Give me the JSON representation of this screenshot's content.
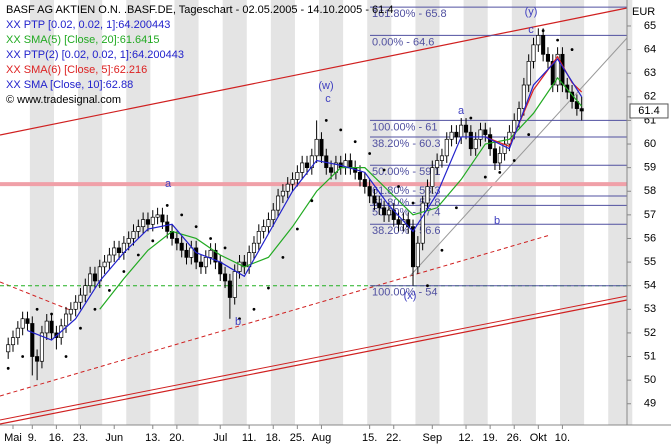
{
  "chart_data": {
    "type": "candlestick",
    "title": "BASF AG AKTIEN O.N. .BASF.DE, Tageschart - 02.05.2005 - 14.10.2005 - 61.4",
    "copyright": "© www.tradesignal.com",
    "currency": "EUR",
    "last_price": 61.4,
    "xlim": [
      -1.7,
      128.4
    ],
    "ylim": [
      48.1,
      66.1
    ],
    "yticks": [
      49,
      50,
      51,
      52,
      53,
      54,
      55,
      56,
      57,
      58,
      59,
      60,
      61,
      62,
      63,
      64,
      65
    ],
    "xticks": [
      {
        "value": 1,
        "label": "Mai"
      },
      {
        "value": 5,
        "label": "9."
      },
      {
        "value": 10,
        "label": "16."
      },
      {
        "value": 15,
        "label": "23."
      },
      {
        "value": 22,
        "label": "Jun"
      },
      {
        "value": 30,
        "label": "13."
      },
      {
        "value": 35,
        "label": "20."
      },
      {
        "value": 44,
        "label": "Jul"
      },
      {
        "value": 50,
        "label": "11."
      },
      {
        "value": 55,
        "label": "18."
      },
      {
        "value": 60,
        "label": "25."
      },
      {
        "value": 65,
        "label": "Aug"
      },
      {
        "value": 75,
        "label": "15."
      },
      {
        "value": 80,
        "label": "22."
      },
      {
        "value": 88,
        "label": "Sep"
      },
      {
        "value": 95,
        "label": "12."
      },
      {
        "value": 100,
        "label": "19."
      },
      {
        "value": 105,
        "label": "26."
      },
      {
        "value": 110,
        "label": "Okt"
      },
      {
        "value": 115,
        "label": "10."
      }
    ],
    "open": [
      51.2,
      51.5,
      51.8,
      52.2,
      52.6,
      52.4,
      51.0,
      50.8,
      52.0,
      52.5,
      52.0,
      51.8,
      52.3,
      52.8,
      53.0,
      53.3,
      53.6,
      54.0,
      54.5,
      54.2,
      54.8,
      55.0,
      55.3,
      55.6,
      55.4,
      55.8,
      56.0,
      56.3,
      56.5,
      56.8,
      56.6,
      56.9,
      57.0,
      56.7,
      56.3,
      56.0,
      55.8,
      55.5,
      55.2,
      55.6,
      55.0,
      54.8,
      55.2,
      55.5,
      55.0,
      54.5,
      54.2,
      53.5,
      54.6,
      55.0,
      54.8,
      55.4,
      55.8,
      56.3,
      56.5,
      56.8,
      57.2,
      57.8,
      58.0,
      58.3,
      58.5,
      58.8,
      59.2,
      59.0,
      59.5,
      60.2,
      59.5,
      59.0,
      58.8,
      59.2,
      59.0,
      59.3,
      59.0,
      58.8,
      58.5,
      58.2,
      57.8,
      57.5,
      57.3,
      57.0,
      57.2,
      56.8,
      56.6,
      56.8,
      56.5,
      54.8,
      55.8,
      57.5,
      58.2,
      59.0,
      59.3,
      59.5,
      60.2,
      60.5,
      60.3,
      60.8,
      60.5,
      59.8,
      60.2,
      60.6,
      60.4,
      59.8,
      59.2,
      59.6,
      60.0,
      60.5,
      61.0,
      61.5,
      62.5,
      63.5,
      64.2,
      64.6,
      63.8,
      63.5,
      62.5,
      63.8,
      62.5,
      62.2,
      61.8,
      61.5
    ],
    "high": [
      51.8,
      52.1,
      52.5,
      52.9,
      52.9,
      52.7,
      51.3,
      52.3,
      52.8,
      52.8,
      52.3,
      52.6,
      53.1,
      53.3,
      53.6,
      53.9,
      54.3,
      54.8,
      54.8,
      55.1,
      55.3,
      55.6,
      55.9,
      55.9,
      56.1,
      56.3,
      56.6,
      56.8,
      57.1,
      57.1,
      57.2,
      57.3,
      57.3,
      57.0,
      56.6,
      56.3,
      56.1,
      55.8,
      55.9,
      55.9,
      55.3,
      55.5,
      55.8,
      55.8,
      55.3,
      54.8,
      54.5,
      54.9,
      55.3,
      55.3,
      55.7,
      56.1,
      56.6,
      56.8,
      57.1,
      57.5,
      58.1,
      58.3,
      58.6,
      58.8,
      59.1,
      59.5,
      59.5,
      59.8,
      61.0,
      60.5,
      59.8,
      59.3,
      59.5,
      59.5,
      59.6,
      59.6,
      59.3,
      59.1,
      58.8,
      58.5,
      58.1,
      57.8,
      57.6,
      57.5,
      57.5,
      57.1,
      57.1,
      57.1,
      56.8,
      56.1,
      57.8,
      58.5,
      59.3,
      59.6,
      59.8,
      60.5,
      60.8,
      60.8,
      61.1,
      61.1,
      60.8,
      60.5,
      60.9,
      60.9,
      60.7,
      60.1,
      59.9,
      60.3,
      60.8,
      61.3,
      61.8,
      62.8,
      63.8,
      64.5,
      64.9,
      64.9,
      64.1,
      63.8,
      64.1,
      64.1,
      62.8,
      62.5,
      62.1,
      62.0
    ],
    "low": [
      50.9,
      51.2,
      51.5,
      51.9,
      52.1,
      50.2,
      50.0,
      50.5,
      51.7,
      51.7,
      51.3,
      51.5,
      52.0,
      52.5,
      52.7,
      53.0,
      53.3,
      53.7,
      53.9,
      53.9,
      54.5,
      54.7,
      55.0,
      55.1,
      55.1,
      55.5,
      55.7,
      56.0,
      56.2,
      56.3,
      56.3,
      56.6,
      56.4,
      56.0,
      55.7,
      55.5,
      55.2,
      54.9,
      54.9,
      54.7,
      54.5,
      54.5,
      54.9,
      54.7,
      54.2,
      53.9,
      52.6,
      53.2,
      54.3,
      54.5,
      54.5,
      55.1,
      55.5,
      56.0,
      56.2,
      56.5,
      56.9,
      57.5,
      57.7,
      58.0,
      58.2,
      58.5,
      58.7,
      58.7,
      59.2,
      59.2,
      58.7,
      58.5,
      58.5,
      58.7,
      58.7,
      58.7,
      58.5,
      58.2,
      57.9,
      57.5,
      57.2,
      57.0,
      56.7,
      56.7,
      56.5,
      56.3,
      56.3,
      56.2,
      54.0,
      54.5,
      55.5,
      57.2,
      57.9,
      58.7,
      59.0,
      59.2,
      59.9,
      60.0,
      60.0,
      60.2,
      59.5,
      59.5,
      59.9,
      60.1,
      59.5,
      58.9,
      58.9,
      59.3,
      59.7,
      60.2,
      60.7,
      61.2,
      62.2,
      63.2,
      63.9,
      63.5,
      63.2,
      62.2,
      62.2,
      62.2,
      61.9,
      61.5,
      61.2,
      61.0
    ],
    "close": [
      51.5,
      51.8,
      52.2,
      52.6,
      52.4,
      51.0,
      50.8,
      52.0,
      52.5,
      52.0,
      51.8,
      52.3,
      52.8,
      53.0,
      53.3,
      53.6,
      54.0,
      54.5,
      54.2,
      54.8,
      55.0,
      55.3,
      55.6,
      55.4,
      55.8,
      56.0,
      56.3,
      56.5,
      56.8,
      56.6,
      56.9,
      57.0,
      56.7,
      56.3,
      56.0,
      55.8,
      55.5,
      55.2,
      55.6,
      55.0,
      54.8,
      55.2,
      55.5,
      55.0,
      54.5,
      54.2,
      53.5,
      54.6,
      55.0,
      54.8,
      55.4,
      55.8,
      56.3,
      56.5,
      56.8,
      57.2,
      57.8,
      58.0,
      58.3,
      58.5,
      58.8,
      59.2,
      59.0,
      59.5,
      60.2,
      59.5,
      59.0,
      58.8,
      59.2,
      59.0,
      59.3,
      59.0,
      58.8,
      58.5,
      58.2,
      57.8,
      57.5,
      57.3,
      57.0,
      57.2,
      56.8,
      56.6,
      56.8,
      56.5,
      54.8,
      55.8,
      57.5,
      58.2,
      59.0,
      59.3,
      59.5,
      60.2,
      60.5,
      60.3,
      60.8,
      60.5,
      59.8,
      60.2,
      60.6,
      60.4,
      59.8,
      59.2,
      59.6,
      60.0,
      60.5,
      61.0,
      61.5,
      62.5,
      63.5,
      64.2,
      64.6,
      63.8,
      63.5,
      62.5,
      63.8,
      62.5,
      62.2,
      61.8,
      61.5,
      61.4
    ],
    "series": [
      {
        "name": "XX PTP [0.02, 0.02, 1]:64.200443",
        "color": "#2222cc",
        "marker_color": "#000000",
        "style": "dots",
        "x": [
          0,
          3,
          6,
          9,
          12,
          15,
          18,
          21,
          24,
          27,
          30,
          33,
          36,
          39,
          42,
          45,
          48,
          51,
          54,
          57
        ],
        "values": [
          50.5,
          51.0,
          53.0,
          52.8,
          51.0,
          52.2,
          53.0,
          53.8,
          54.6,
          55.3,
          55.9,
          57.4,
          57.0,
          56.5,
          56.0,
          55.6,
          52.6,
          53.0,
          53.9,
          55.2
        ]
      },
      {
        "name": "XX SMA(5) [Close, 20]:61.6415",
        "color": "#22aa22",
        "style": "line",
        "x": [
          19,
          24,
          29,
          34,
          39,
          44,
          49,
          54,
          59,
          64,
          69,
          74,
          79,
          84,
          89,
          94,
          99,
          104,
          109,
          114,
          119
        ],
        "values": [
          53.0,
          54.3,
          55.5,
          56.3,
          56.0,
          55.3,
          54.8,
          55.2,
          56.5,
          58.0,
          59.0,
          59.0,
          58.0,
          57.0,
          57.3,
          58.5,
          60.0,
          60.2,
          61.3,
          62.8,
          61.6
        ]
      },
      {
        "name": "XX PTP(2) [0.02, 0.02, 1]:64.200443",
        "color": "#2222cc",
        "marker_color": "#000000",
        "style": "dots",
        "x": [
          60,
          63,
          66,
          69,
          72,
          75,
          78,
          81,
          84,
          87,
          90,
          93,
          96,
          99,
          102,
          105,
          108,
          111,
          114,
          117
        ],
        "values": [
          56.4,
          57.6,
          61.0,
          60.6,
          60.1,
          59.6,
          58.9,
          58.2,
          57.5,
          54.0,
          55.5,
          57.3,
          61.1,
          58.6,
          58.8,
          59.3,
          60.4,
          64.8,
          64.4,
          64.0
        ]
      },
      {
        "name": "XX SMA(6) [Close, 5]:62.216",
        "color": "#dd2222",
        "style": "line",
        "x": [
          99,
          104,
          109,
          114,
          117,
          119
        ],
        "values": [
          60.3,
          59.9,
          62.3,
          63.7,
          62.6,
          62.2
        ]
      },
      {
        "name": "XX SMA [Close, 10]:62.88",
        "color": "#2222cc",
        "style": "line",
        "x": [
          4,
          9,
          14,
          19,
          24,
          29,
          34,
          39,
          44,
          49,
          54,
          59,
          64,
          69,
          74,
          79,
          84,
          89,
          94,
          99,
          104,
          109,
          114,
          119
        ],
        "values": [
          52.1,
          51.7,
          52.6,
          54.2,
          55.4,
          56.4,
          56.6,
          55.4,
          55.0,
          54.4,
          56.2,
          58.0,
          59.3,
          59.1,
          58.8,
          57.4,
          56.3,
          57.9,
          60.3,
          60.3,
          59.8,
          62.5,
          63.6,
          62.0
        ]
      }
    ],
    "fib_levels": [
      {
        "label": "161.80% - 65.8",
        "value": 65.8
      },
      {
        "label": "0.00% - 64.6",
        "value": 64.6
      },
      {
        "label": "100.00% - 61",
        "value": 61
      },
      {
        "label": "38.20% - 60.3",
        "value": 60.3
      },
      {
        "label": "50.00% - 59.1",
        "value": 59.1
      },
      {
        "label": "61.80% - 58.3",
        "value": 58.3
      },
      {
        "label": "61.80% - 57.8",
        "value": 57.8
      },
      {
        "label": "50.00% - 57.4",
        "value": 57.4
      },
      {
        "label": "38.20% - 56.6",
        "value": 56.6
      },
      {
        "label": "100.00% - 54",
        "value": 54
      }
    ],
    "annotations": [
      "(y)",
      "(w)",
      "c",
      "a",
      "b",
      "(x)",
      "a",
      "b",
      "c"
    ]
  }
}
